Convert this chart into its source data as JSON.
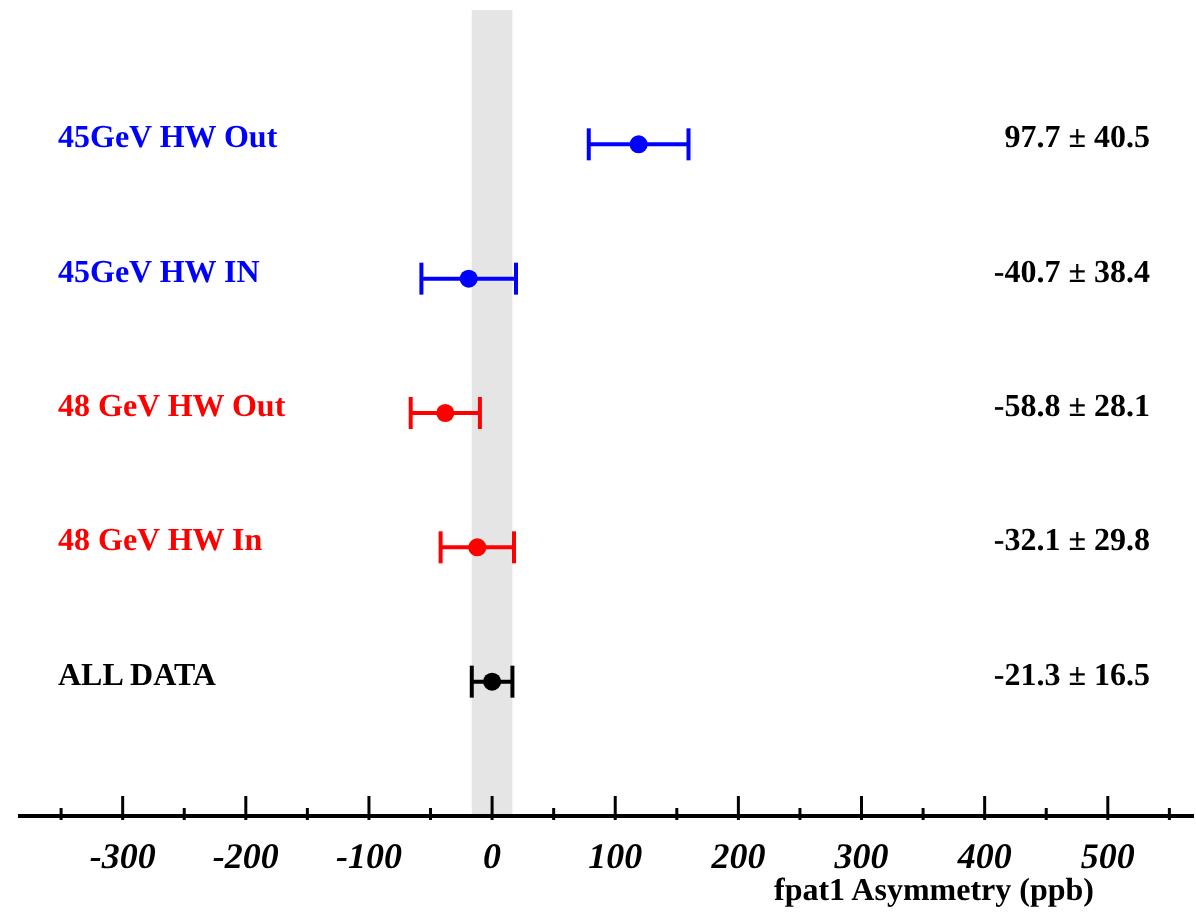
{
  "chart_data": {
    "type": "scatter",
    "orientation": "horizontal",
    "categories": [
      "45GeV HW Out",
      "45GeV HW IN",
      "48 GeV HW Out",
      "48 GeV HW In",
      "ALL DATA"
    ],
    "values": [
      119,
      -19,
      -38,
      -12,
      0
    ],
    "errors": [
      40.5,
      38.4,
      28.1,
      29.8,
      16.5
    ],
    "colors": [
      "#0000ff",
      "#0000ff",
      "#ff0000",
      "#ff0000",
      "#000000"
    ],
    "annotations": [
      "97.7 ± 40.5",
      "-40.7 ± 38.4",
      "-58.8 ± 28.1",
      "-32.1 ± 29.8",
      "-21.3 ± 16.5"
    ],
    "xlabel": "fpat1 Asymmetry (ppb)",
    "xlim": [
      -385,
      570
    ],
    "xticks": [
      {
        "value": -350,
        "label": null
      },
      -300,
      {
        "value": -250,
        "label": null
      },
      -200,
      {
        "value": -150,
        "label": null
      },
      -100,
      {
        "value": -50,
        "label": null
      },
      0,
      {
        "value": 50,
        "label": null
      },
      100,
      {
        "value": 150,
        "label": null
      },
      200,
      {
        "value": 250,
        "label": null
      },
      300,
      {
        "value": 350,
        "label": null
      },
      400,
      {
        "value": 450,
        "label": null
      },
      500,
      {
        "value": 550,
        "label": null
      }
    ],
    "bands": [
      {
        "axis": "x",
        "from": -16.5,
        "to": 16.5,
        "color": "#e5e5e5"
      }
    ],
    "marker": "circle"
  }
}
